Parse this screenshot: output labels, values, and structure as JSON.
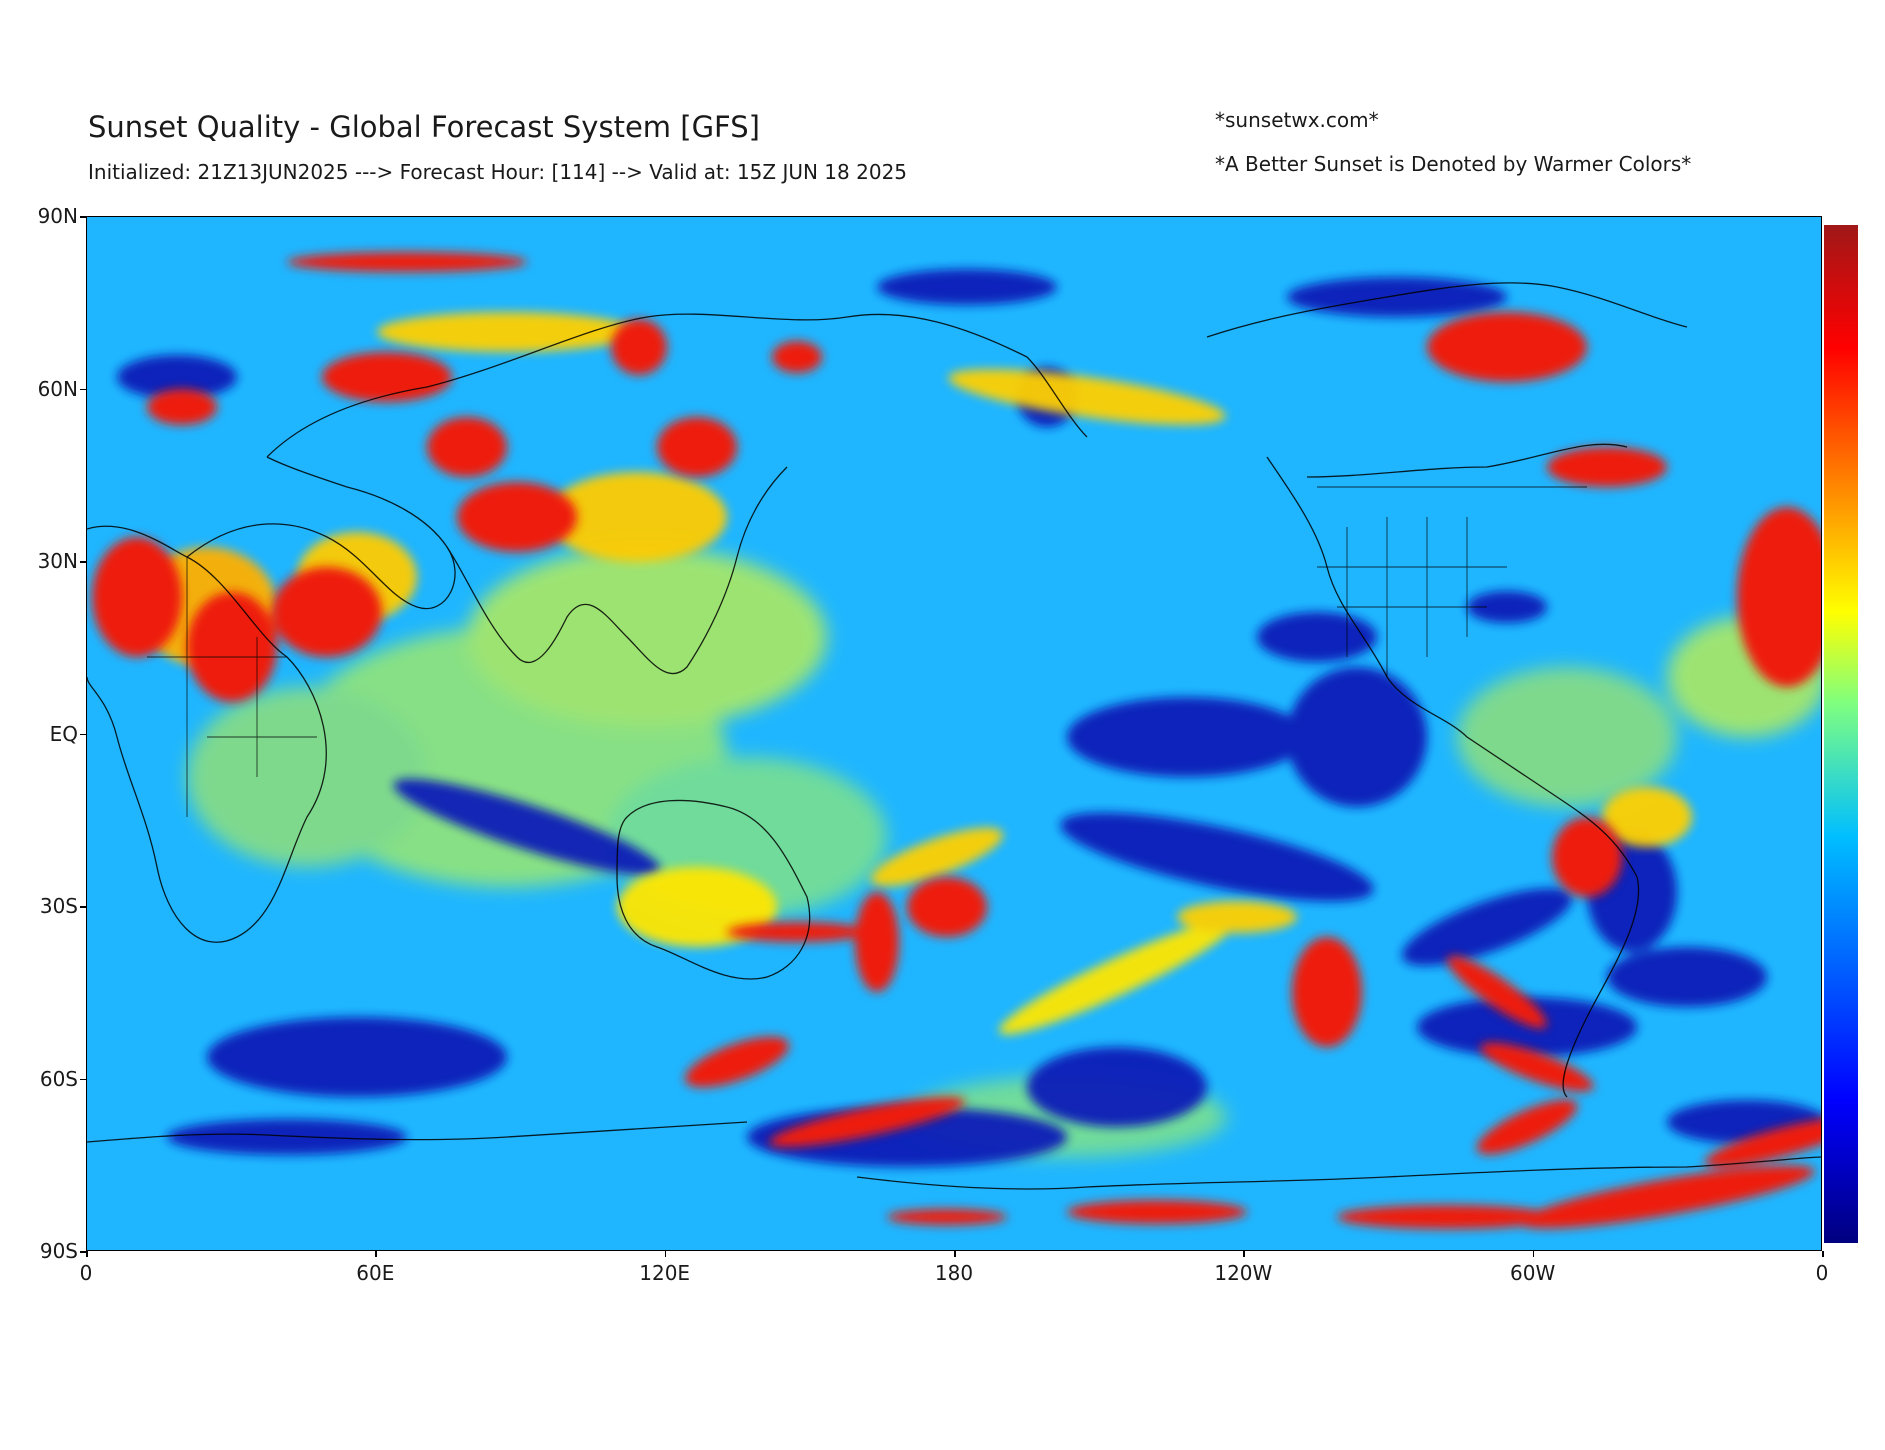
{
  "header": {
    "title": "Sunset Quality - Global Forecast System [GFS]",
    "subtitle": "Initialized: 21Z13JUN2025 ---> Forecast Hour: [114] --> Valid at: 15Z JUN 18 2025",
    "credit": "*sunsetwx.com*",
    "note": "*A Better Sunset is Denoted by Warmer Colors*"
  },
  "map": {
    "projection": "equirectangular",
    "lon_range": [
      0,
      360
    ],
    "lat_range": [
      -90,
      90
    ],
    "field": "sunset quality",
    "colormap": "jet",
    "y_ticks": [
      {
        "lat": 90,
        "label": "90N"
      },
      {
        "lat": 60,
        "label": "60N"
      },
      {
        "lat": 30,
        "label": "30N"
      },
      {
        "lat": 0,
        "label": "EQ"
      },
      {
        "lat": -30,
        "label": "30S"
      },
      {
        "lat": -60,
        "label": "60S"
      },
      {
        "lat": -90,
        "label": "90S"
      }
    ],
    "x_ticks": [
      {
        "lon": 0,
        "label": "0"
      },
      {
        "lon": 60,
        "label": "60E"
      },
      {
        "lon": 120,
        "label": "120E"
      },
      {
        "lon": 180,
        "label": "180"
      },
      {
        "lon": 240,
        "label": "120W"
      },
      {
        "lon": 300,
        "label": "60W"
      },
      {
        "lon": 360,
        "label": "0"
      }
    ],
    "colors": {
      "background": "#1fb6ff",
      "low": "#00007f",
      "mid_low": "#0a3bd6",
      "mid": "#00c0ff",
      "mid_high": "#9ae870",
      "high_yellow": "#ffe600",
      "high_orange": "#ff8a00",
      "high_red": "#ee1c0c",
      "max": "#a01818",
      "coastline": "#000000"
    }
  }
}
